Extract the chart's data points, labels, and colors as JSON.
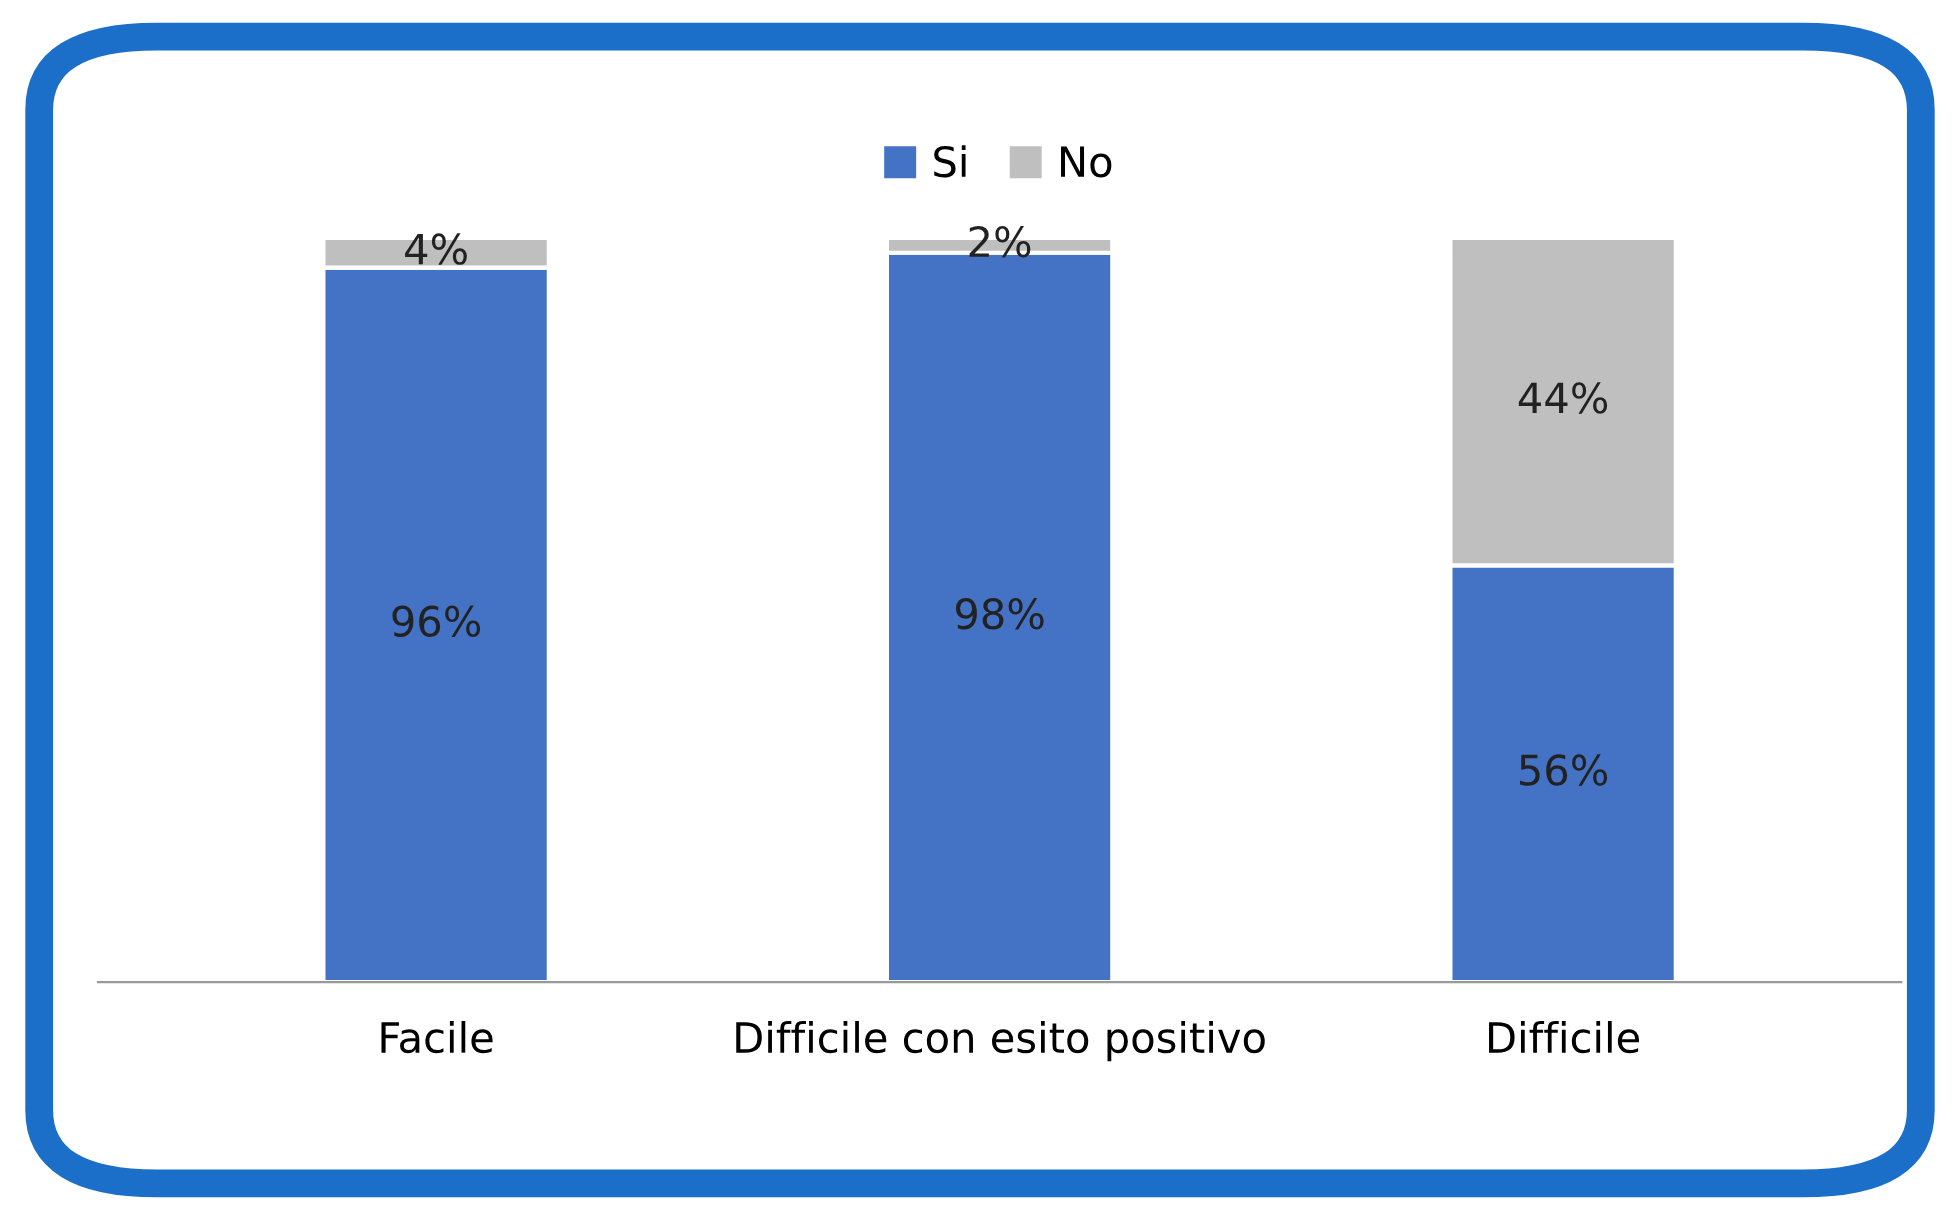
{
  "chart_data": {
    "type": "bar",
    "stacked": true,
    "categories": [
      "Facile",
      "Difficile con esito positivo",
      "Difficile"
    ],
    "series": [
      {
        "name": "Si",
        "color": "#4472c4",
        "values": [
          96,
          98,
          56
        ],
        "value_labels": [
          "96%",
          "98%",
          "56%"
        ]
      },
      {
        "name": "No",
        "color": "#bfbfbf",
        "values": [
          4,
          2,
          44
        ],
        "value_labels": [
          "4%",
          "2%",
          "44%"
        ]
      }
    ],
    "legend": "top",
    "grid": false
  }
}
